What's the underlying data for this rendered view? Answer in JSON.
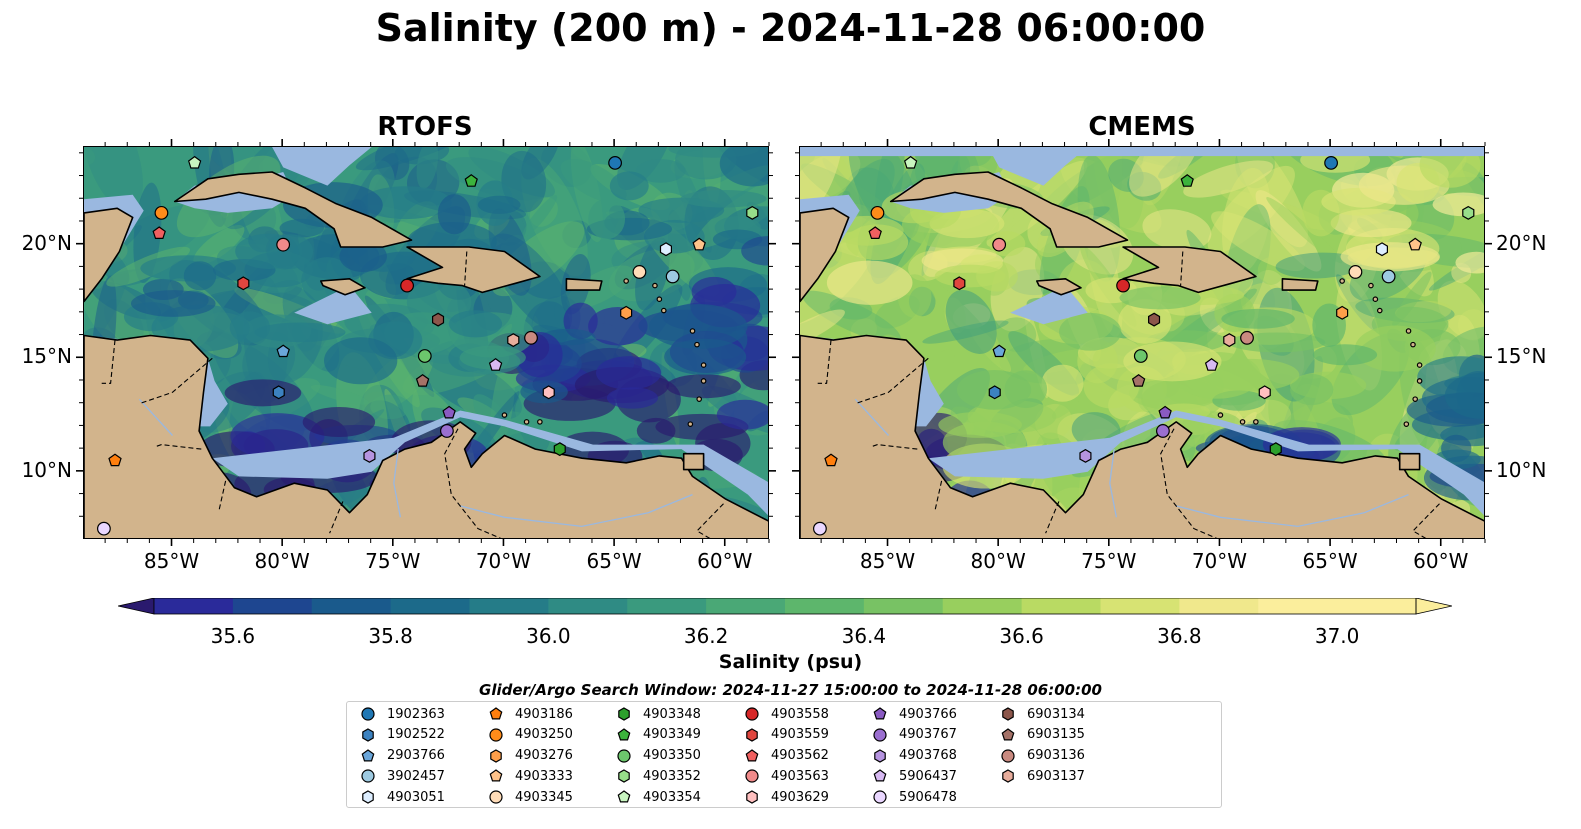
{
  "title": "Salinity (200 m) - 2024-11-28 06:00:00",
  "panels": [
    {
      "title": "RTOFS",
      "model": "rtofs"
    },
    {
      "title": "CMEMS",
      "model": "cmems"
    }
  ],
  "map_extent": {
    "lon_min": -89.0,
    "lon_max": -58.0,
    "lat_min": 7.0,
    "lat_max": 24.3
  },
  "lon_ticks": [
    {
      "value": -85,
      "label": "85°W"
    },
    {
      "value": -80,
      "label": "80°W"
    },
    {
      "value": -75,
      "label": "75°W"
    },
    {
      "value": -70,
      "label": "70°W"
    },
    {
      "value": -65,
      "label": "65°W"
    },
    {
      "value": -60,
      "label": "60°W"
    }
  ],
  "lat_ticks": [
    {
      "value": 10,
      "label": "10°N"
    },
    {
      "value": 15,
      "label": "15°N"
    },
    {
      "value": 20,
      "label": "20°N"
    }
  ],
  "colorbar": {
    "label": "Salinity (psu)",
    "min": 35.5,
    "max": 37.1,
    "step": 0.1,
    "ticks": [
      {
        "value": 35.6,
        "label": "35.6"
      },
      {
        "value": 35.8,
        "label": "35.8"
      },
      {
        "value": 36.0,
        "label": "36.0"
      },
      {
        "value": 36.2,
        "label": "36.2"
      },
      {
        "value": 36.4,
        "label": "36.4"
      },
      {
        "value": 36.6,
        "label": "36.6"
      },
      {
        "value": 36.8,
        "label": "36.8"
      },
      {
        "value": 37.0,
        "label": "37.0"
      }
    ],
    "colormap": [
      "#2a1a6e",
      "#2a2a9a",
      "#1e4690",
      "#1a5a8c",
      "#1c6a8a",
      "#257c88",
      "#2f8b84",
      "#3a9a7e",
      "#4aa876",
      "#5db66c",
      "#78c264",
      "#98cf5e",
      "#b9da63",
      "#d7e373",
      "#f0e88c",
      "#fbee9c"
    ]
  },
  "search_window": "Glider/Argo Search Window: 2024-11-27 15:00:00 to 2024-11-28 06:00:00",
  "land_color": "#d2b48c",
  "shelf_color": "#9ab8e0",
  "floats": [
    {
      "id": "1902363",
      "marker": "circle",
      "color": "#1f77b4",
      "lon": -65.0,
      "lat": 23.6
    },
    {
      "id": "1902522",
      "marker": "hexagon",
      "color": "#3c82c0",
      "lon": -80.2,
      "lat": 13.5
    },
    {
      "id": "2903766",
      "marker": "pentagon",
      "color": "#6aa6da",
      "lon": -80.0,
      "lat": 15.3
    },
    {
      "id": "3902457",
      "marker": "circle",
      "color": "#9ecae1",
      "lon": -62.4,
      "lat": 18.6
    },
    {
      "id": "4903051",
      "marker": "hexagon",
      "color": "#ddeeff",
      "lon": -62.7,
      "lat": 19.8
    },
    {
      "id": "4903186",
      "marker": "pentagon",
      "color": "#ff7f0e",
      "lon": -87.6,
      "lat": 10.5
    },
    {
      "id": "4903250",
      "marker": "circle",
      "color": "#ff8c1a",
      "lon": -85.5,
      "lat": 21.4
    },
    {
      "id": "4903276",
      "marker": "hexagon",
      "color": "#ff9f4a",
      "lon": -64.5,
      "lat": 17.0
    },
    {
      "id": "4903333",
      "marker": "pentagon",
      "color": "#ffc38a",
      "lon": -61.2,
      "lat": 20.0
    },
    {
      "id": "4903345",
      "marker": "circle",
      "color": "#ffdcb8",
      "lon": -63.9,
      "lat": 18.8
    },
    {
      "id": "4903348",
      "marker": "hexagon",
      "color": "#2ca02c",
      "lon": -67.5,
      "lat": 11.0
    },
    {
      "id": "4903349",
      "marker": "pentagon",
      "color": "#3cb33c",
      "lon": -71.5,
      "lat": 22.8
    },
    {
      "id": "4903350",
      "marker": "circle",
      "color": "#6cc66c",
      "lon": -73.6,
      "lat": 15.1
    },
    {
      "id": "4903352",
      "marker": "hexagon",
      "color": "#98df8a",
      "lon": -58.8,
      "lat": 21.4
    },
    {
      "id": "4903354",
      "marker": "pentagon",
      "color": "#c9f5c0",
      "lon": -84.0,
      "lat": 23.6
    },
    {
      "id": "4903558",
      "marker": "circle",
      "color": "#d62728",
      "lon": -74.4,
      "lat": 18.2
    },
    {
      "id": "4903559",
      "marker": "hexagon",
      "color": "#e0463f",
      "lon": -81.8,
      "lat": 18.3
    },
    {
      "id": "4903562",
      "marker": "pentagon",
      "color": "#f06060",
      "lon": -85.6,
      "lat": 20.5
    },
    {
      "id": "4903563",
      "marker": "circle",
      "color": "#f08a8a",
      "lon": -80.0,
      "lat": 20.0
    },
    {
      "id": "4903629",
      "marker": "hexagon",
      "color": "#ffc0c0",
      "lon": -68.0,
      "lat": 13.5
    },
    {
      "id": "4903766",
      "marker": "pentagon",
      "color": "#8a5ac2",
      "lon": -72.5,
      "lat": 12.6
    },
    {
      "id": "4903767",
      "marker": "circle",
      "color": "#9b6fd0",
      "lon": -72.6,
      "lat": 11.8
    },
    {
      "id": "4903768",
      "marker": "hexagon",
      "color": "#b694e0",
      "lon": -76.1,
      "lat": 10.7
    },
    {
      "id": "5906437",
      "marker": "pentagon",
      "color": "#d7b9f2",
      "lon": -70.4,
      "lat": 14.7
    },
    {
      "id": "5906478",
      "marker": "circle",
      "color": "#ead7ff",
      "lon": -88.1,
      "lat": 7.5
    },
    {
      "id": "6903134",
      "marker": "hexagon",
      "color": "#8c564b",
      "lon": -73.0,
      "lat": 16.7
    },
    {
      "id": "6903135",
      "marker": "pentagon",
      "color": "#a57268",
      "lon": -73.7,
      "lat": 14.0
    },
    {
      "id": "6903136",
      "marker": "circle",
      "color": "#c98a80",
      "lon": -68.8,
      "lat": 15.9
    },
    {
      "id": "6903137",
      "marker": "hexagon",
      "color": "#e8ad9c",
      "lon": -69.6,
      "lat": 15.8
    }
  ]
}
